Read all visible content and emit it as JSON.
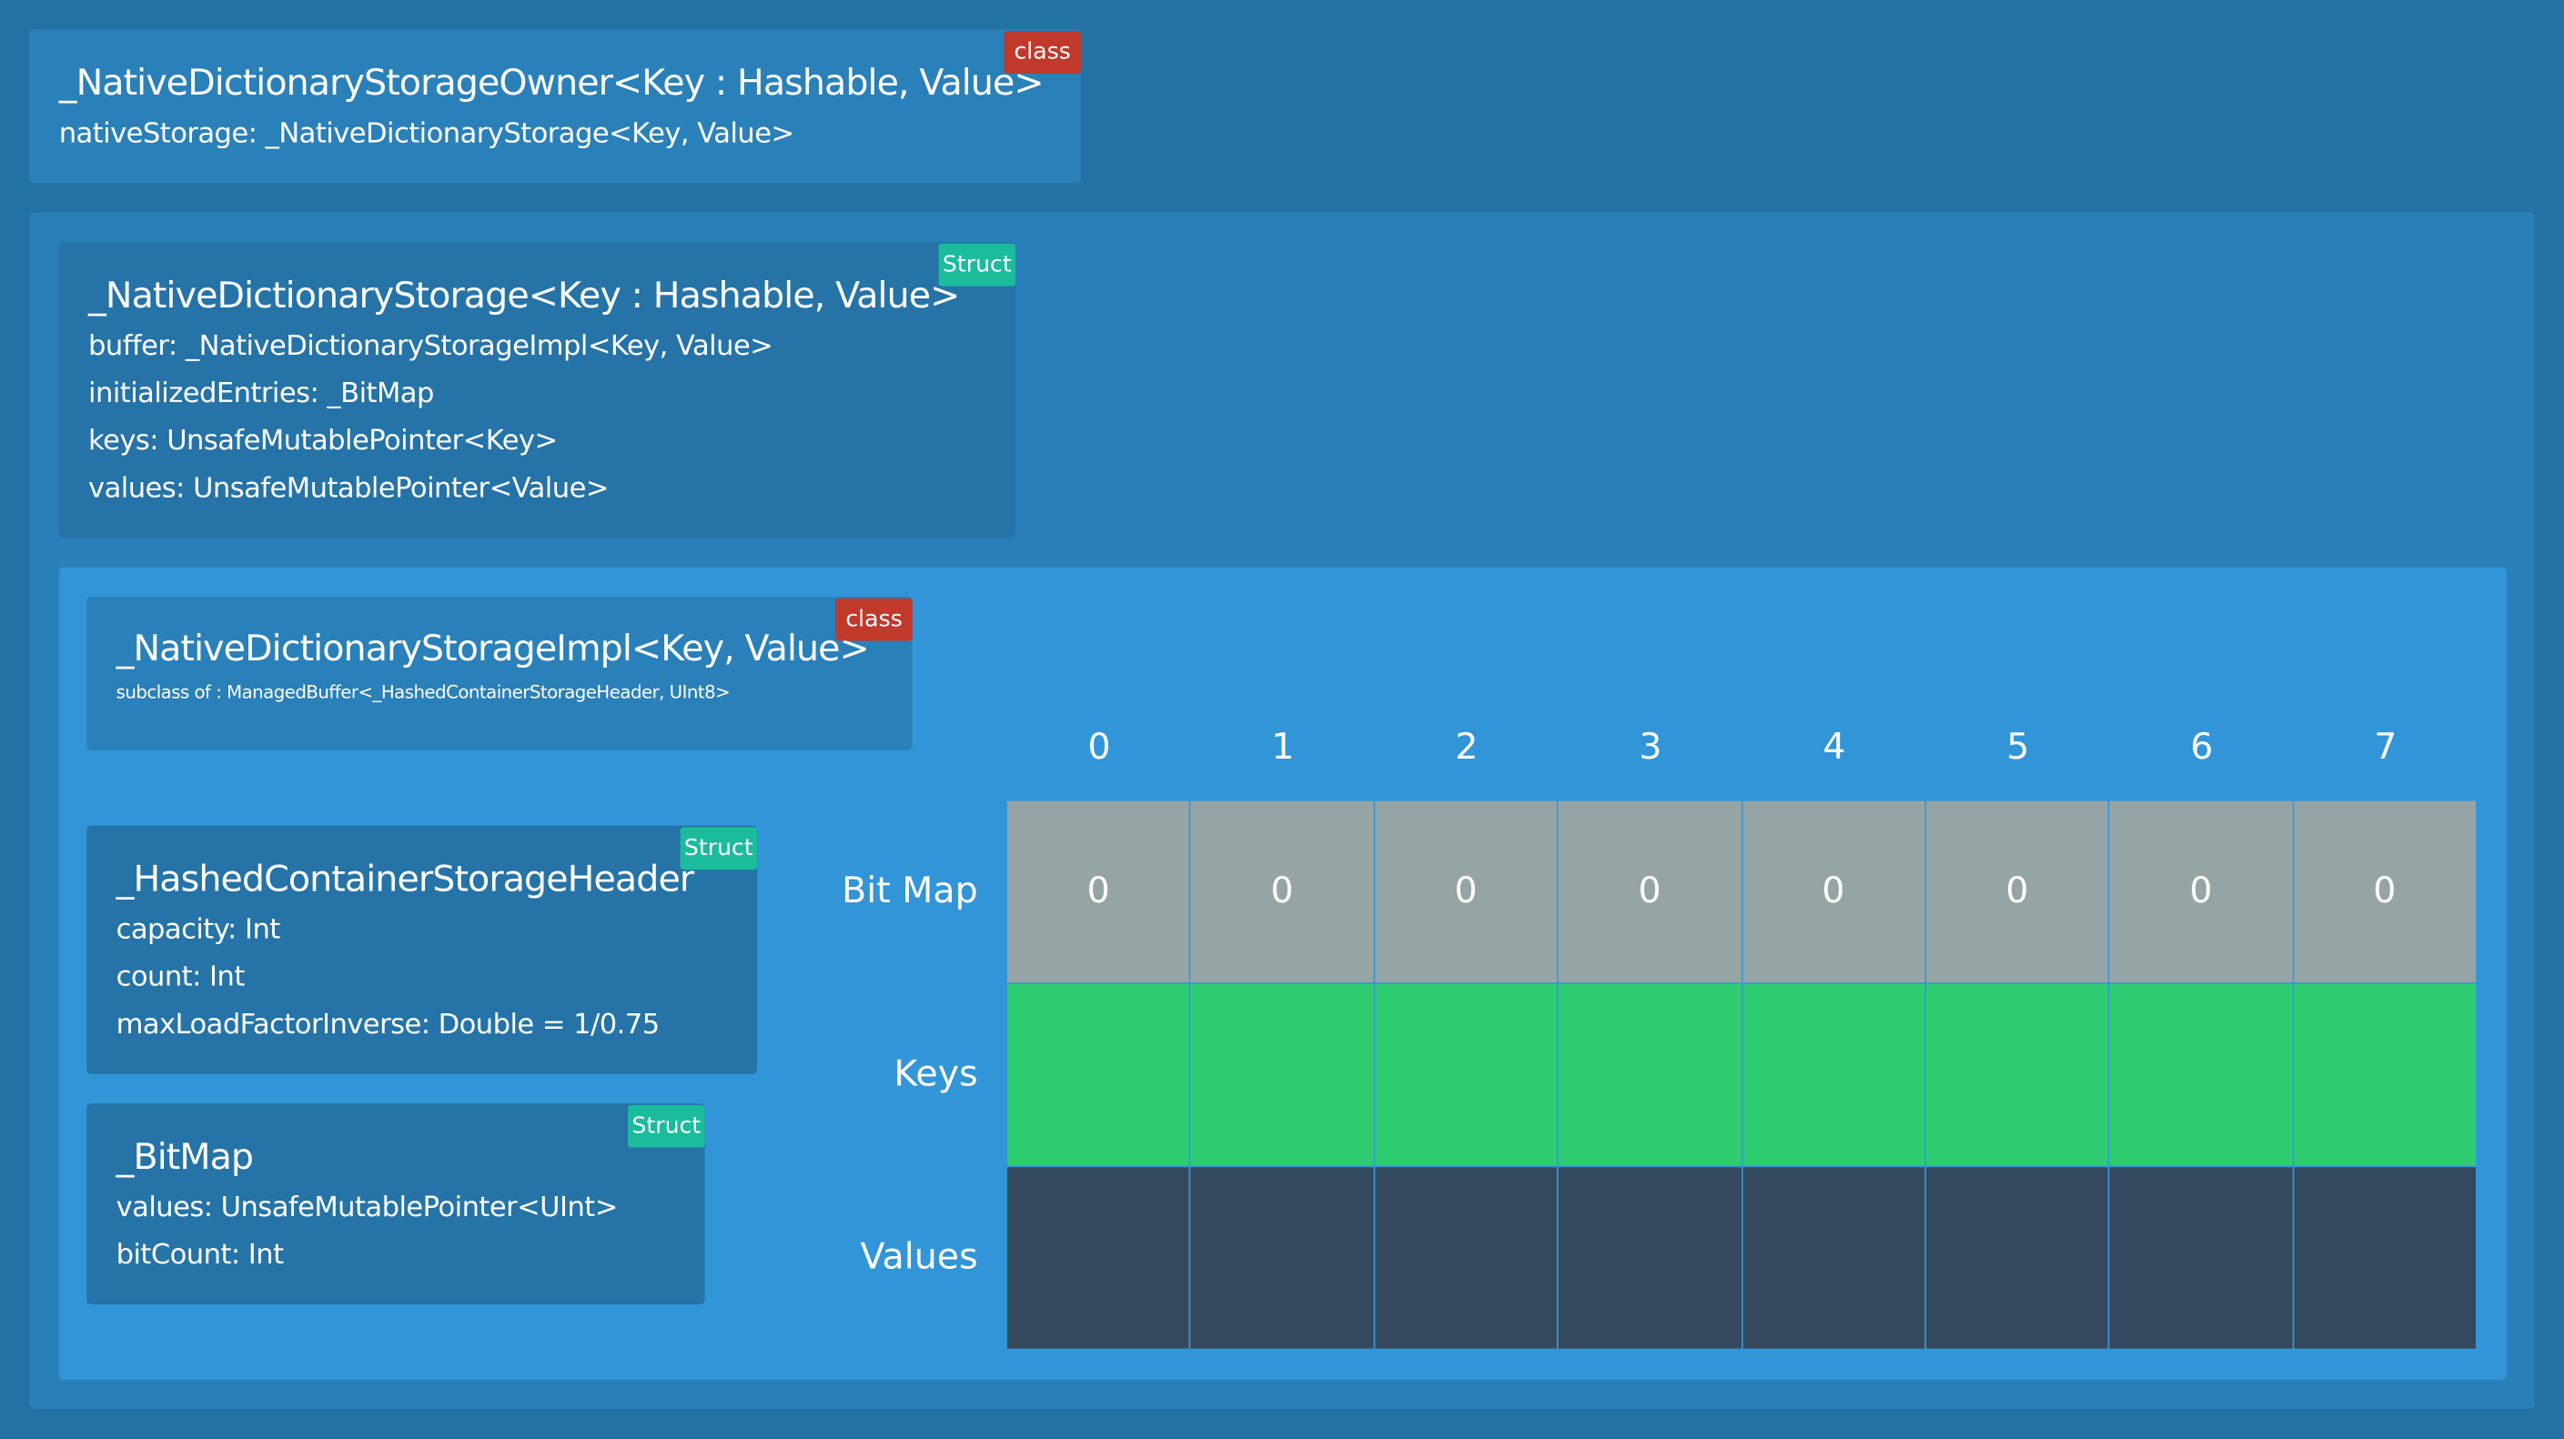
{
  "owner": {
    "title": "_NativeDictionaryStorageOwner<Key : Hashable, Value>",
    "badge": "class",
    "fields": [
      "nativeStorage: _NativeDictionaryStorage<Key, Value>"
    ]
  },
  "storage": {
    "title": "_NativeDictionaryStorage<Key : Hashable, Value>",
    "badge": "Struct",
    "fields": [
      "buffer: _NativeDictionaryStorageImpl<Key, Value>",
      "initializedEntries: _BitMap",
      "keys: UnsafeMutablePointer<Key>",
      "values: UnsafeMutablePointer<Value>"
    ]
  },
  "impl": {
    "title": "_NativeDictionaryStorageImpl<Key, Value>",
    "badge": "class",
    "subtitle": "subclass of : ManagedBuffer<_HashedContainerStorageHeader, UInt8>"
  },
  "header": {
    "title": "_HashedContainerStorageHeader",
    "badge": "Struct",
    "fields": [
      "capacity: Int",
      "count: Int",
      "maxLoadFactorInverse: Double = 1/0.75"
    ]
  },
  "bitmap_struct": {
    "title": "_BitMap",
    "badge": "Struct",
    "fields": [
      "values: UnsafeMutablePointer<UInt>",
      "bitCount: Int"
    ]
  },
  "table": {
    "columns": [
      0,
      1,
      2,
      3,
      4,
      5,
      6,
      7
    ],
    "rows": [
      {
        "label": "Bit Map",
        "cells": [
          0,
          0,
          0,
          0,
          0,
          0,
          0,
          0
        ]
      },
      {
        "label": "Keys"
      },
      {
        "label": "Values"
      }
    ]
  }
}
